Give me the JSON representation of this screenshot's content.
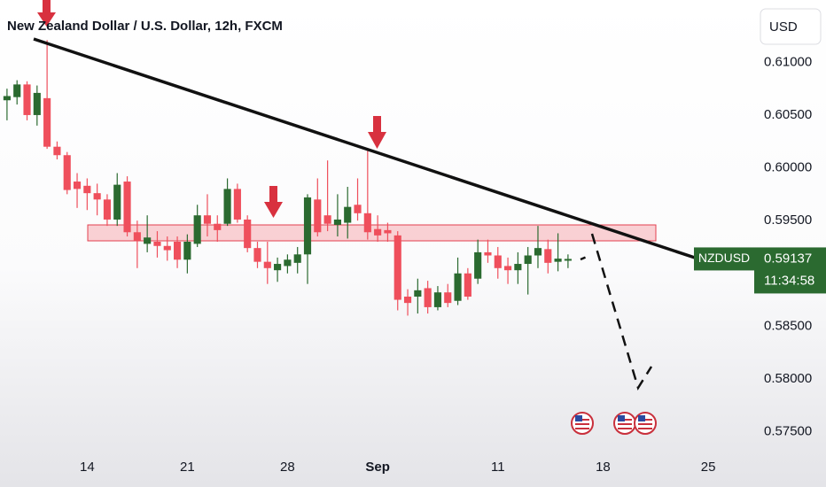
{
  "chart_data": {
    "type": "candlestick",
    "title": "New Zealand Dollar / U.S. Dollar, 12h, FXCM",
    "currency": "USD",
    "symbol": "NZDUSD",
    "last_price": 0.59137,
    "countdown": "11:34:58",
    "up_color": "#2b6a30",
    "down_color": "#ef4f5c",
    "xlim": [
      -0.7,
      74.5
    ],
    "xticks": [
      {
        "value": 8,
        "label": "14"
      },
      {
        "value": 18,
        "label": "21"
      },
      {
        "value": 28,
        "label": "28"
      },
      {
        "value": 37,
        "label": "Sep"
      },
      {
        "value": 49,
        "label": "11"
      },
      {
        "value": 59.5,
        "label": "18"
      },
      {
        "value": 70,
        "label": "25"
      }
    ],
    "ylim": [
      0.5727,
      0.6159
    ],
    "yticks": [
      {
        "value": 0.575,
        "label": "0.57500"
      },
      {
        "value": 0.58,
        "label": "0.58000"
      },
      {
        "value": 0.585,
        "label": "0.58500"
      },
      {
        "value": 0.595,
        "label": "0.59500"
      },
      {
        "value": 0.6,
        "label": "0.60000"
      },
      {
        "value": 0.605,
        "label": "0.60500"
      },
      {
        "value": 0.61,
        "label": "0.61000"
      }
    ],
    "open": [
      0.6064,
      0.6067,
      0.6079,
      0.605,
      0.6066,
      0.602,
      0.6012,
      0.5987,
      0.5983,
      0.5976,
      0.597,
      0.5951,
      0.5987,
      0.5939,
      0.5928,
      0.593,
      0.5926,
      0.593,
      0.5913,
      0.5928,
      0.5955,
      0.5947,
      0.5947,
      0.598,
      0.5951,
      0.5924,
      0.5911,
      0.5903,
      0.5907,
      0.591,
      0.5918,
      0.597,
      0.5955,
      0.5946,
      0.5948,
      0.5965,
      0.5957,
      0.5942,
      0.5941,
      0.5936,
      0.5878,
      0.5878,
      0.5886,
      0.5868,
      0.5882,
      0.5874,
      0.59,
      0.5895,
      0.592,
      0.5917,
      0.5907,
      0.5903,
      0.5909,
      0.5917,
      0.5923,
      0.5911,
      0.5912
    ],
    "high": [
      0.6075,
      0.6083,
      0.6082,
      0.6078,
      0.6121,
      0.6025,
      0.6015,
      0.5995,
      0.599,
      0.5985,
      0.5975,
      0.5995,
      0.5992,
      0.595,
      0.5955,
      0.594,
      0.5935,
      0.5935,
      0.5937,
      0.5965,
      0.5975,
      0.5955,
      0.599,
      0.5985,
      0.5955,
      0.593,
      0.593,
      0.5915,
      0.5918,
      0.5925,
      0.5975,
      0.599,
      0.6007,
      0.5975,
      0.5982,
      0.599,
      0.6016,
      0.5955,
      0.5948,
      0.594,
      0.5885,
      0.5895,
      0.5893,
      0.5888,
      0.589,
      0.5915,
      0.5905,
      0.5932,
      0.5932,
      0.5925,
      0.5915,
      0.592,
      0.5925,
      0.5945,
      0.5932,
      0.5938,
      0.5918
    ],
    "low": [
      0.6045,
      0.606,
      0.6045,
      0.604,
      0.6018,
      0.6008,
      0.5975,
      0.5962,
      0.596,
      0.5955,
      0.5945,
      0.5945,
      0.5935,
      0.5905,
      0.592,
      0.5915,
      0.5912,
      0.5905,
      0.59,
      0.5925,
      0.5935,
      0.593,
      0.5945,
      0.5948,
      0.592,
      0.5905,
      0.589,
      0.5892,
      0.59,
      0.59,
      0.589,
      0.5935,
      0.594,
      0.5935,
      0.5933,
      0.595,
      0.5932,
      0.593,
      0.593,
      0.5865,
      0.586,
      0.5862,
      0.5862,
      0.5865,
      0.5868,
      0.587,
      0.5875,
      0.589,
      0.591,
      0.5895,
      0.589,
      0.589,
      0.588,
      0.5905,
      0.59,
      0.5902,
      0.5905
    ],
    "close": [
      0.6068,
      0.6079,
      0.605,
      0.6071,
      0.602,
      0.6012,
      0.5979,
      0.598,
      0.5976,
      0.597,
      0.5951,
      0.5984,
      0.5939,
      0.5931,
      0.5934,
      0.5926,
      0.5922,
      0.5913,
      0.593,
      0.5955,
      0.5947,
      0.5941,
      0.598,
      0.5951,
      0.5924,
      0.5911,
      0.5905,
      0.5909,
      0.5913,
      0.5918,
      0.5972,
      0.5939,
      0.5947,
      0.5951,
      0.5963,
      0.5957,
      0.5939,
      0.5936,
      0.5938,
      0.5875,
      0.5872,
      0.5884,
      0.5868,
      0.5882,
      0.5872,
      0.59,
      0.5878,
      0.592,
      0.5917,
      0.5905,
      0.5903,
      0.5909,
      0.5917,
      0.5924,
      0.591,
      0.5914,
      0.59137
    ]
  }
}
